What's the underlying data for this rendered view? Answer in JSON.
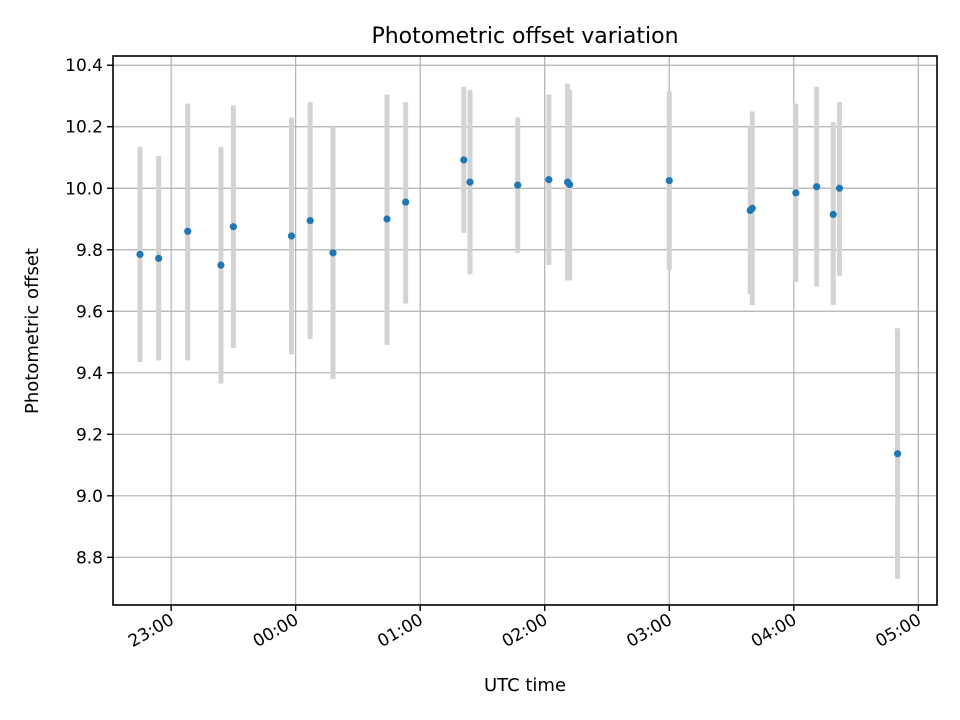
{
  "chart_data": {
    "type": "scatter",
    "title": "Photometric offset variation",
    "xlabel": "UTC time",
    "ylabel": "Photometric offset",
    "x_ticks": [
      "23:00",
      "00:00",
      "01:00",
      "02:00",
      "03:00",
      "04:00",
      "05:00"
    ],
    "y_ticks": [
      "8.8",
      "9.0",
      "9.2",
      "9.4",
      "9.6",
      "9.8",
      "10.0",
      "10.2",
      "10.4"
    ],
    "xlim": [
      "22:32",
      "05:09"
    ],
    "ylim": [
      8.645,
      10.43
    ],
    "grid": true,
    "colors": {
      "point": "#1f77b4",
      "errorbar": "#d3d3d3"
    },
    "points": [
      {
        "x": "22:45",
        "y": 9.785,
        "low": 9.435,
        "high": 10.135
      },
      {
        "x": "22:54",
        "y": 9.772,
        "low": 9.44,
        "high": 10.105
      },
      {
        "x": "23:08",
        "y": 9.86,
        "low": 9.44,
        "high": 10.275
      },
      {
        "x": "23:24",
        "y": 9.75,
        "low": 9.365,
        "high": 10.135
      },
      {
        "x": "23:30",
        "y": 9.875,
        "low": 9.48,
        "high": 10.27
      },
      {
        "x": "23:58",
        "y": 9.845,
        "low": 9.46,
        "high": 10.23
      },
      {
        "x": "00:07",
        "y": 9.895,
        "low": 9.51,
        "high": 10.28
      },
      {
        "x": "00:18",
        "y": 9.79,
        "low": 9.38,
        "high": 10.2
      },
      {
        "x": "00:44",
        "y": 9.9,
        "low": 9.49,
        "high": 10.305
      },
      {
        "x": "00:53",
        "y": 9.955,
        "low": 9.625,
        "high": 10.28
      },
      {
        "x": "01:21",
        "y": 10.092,
        "low": 9.855,
        "high": 10.33
      },
      {
        "x": "01:24",
        "y": 10.02,
        "low": 9.72,
        "high": 10.32
      },
      {
        "x": "01:47",
        "y": 10.01,
        "low": 9.79,
        "high": 10.23
      },
      {
        "x": "02:02",
        "y": 10.028,
        "low": 9.75,
        "high": 10.305
      },
      {
        "x": "02:11",
        "y": 10.02,
        "low": 9.7,
        "high": 10.34
      },
      {
        "x": "02:12",
        "y": 10.012,
        "low": 9.7,
        "high": 10.32
      },
      {
        "x": "03:00",
        "y": 10.025,
        "low": 9.735,
        "high": 10.315
      },
      {
        "x": "03:39",
        "y": 9.928,
        "low": 9.655,
        "high": 10.2
      },
      {
        "x": "03:40",
        "y": 9.935,
        "low": 9.62,
        "high": 10.25
      },
      {
        "x": "04:01",
        "y": 9.985,
        "low": 9.695,
        "high": 10.275
      },
      {
        "x": "04:11",
        "y": 10.005,
        "low": 9.68,
        "high": 10.33
      },
      {
        "x": "04:19",
        "y": 9.915,
        "low": 9.62,
        "high": 10.215
      },
      {
        "x": "04:22",
        "y": 10.0,
        "low": 9.715,
        "high": 10.28
      },
      {
        "x": "04:50",
        "y": 9.137,
        "low": 8.73,
        "high": 9.545
      }
    ]
  }
}
